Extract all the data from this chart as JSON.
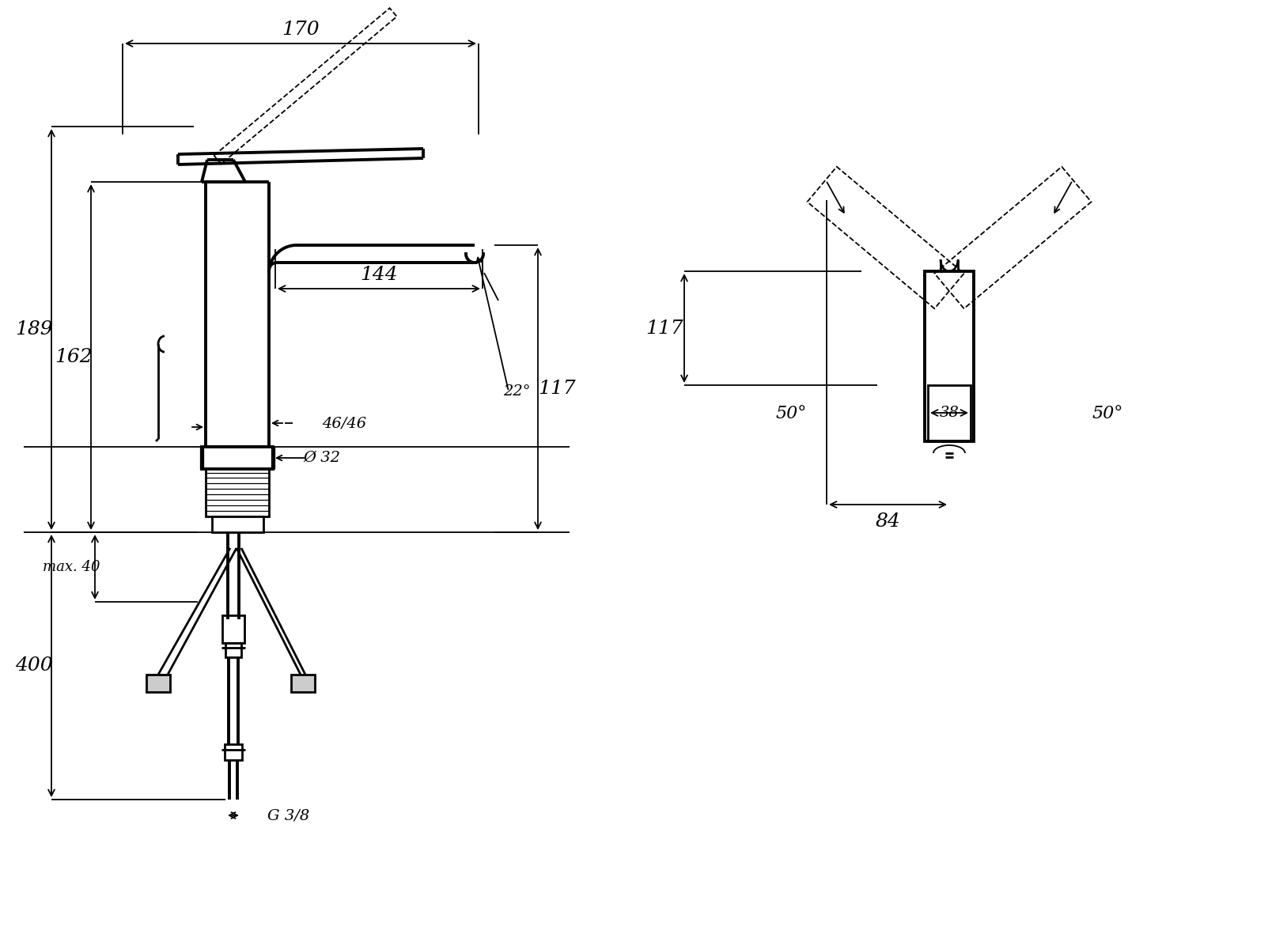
{
  "bg_color": "#ffffff",
  "line_color": "#000000",
  "lw": 2.0,
  "lw_thin": 1.3,
  "lw_thick": 2.8,
  "annotations": {
    "dim_170": "170",
    "dim_162": "162",
    "dim_189": "189",
    "dim_144": "144",
    "dim_22": "22°",
    "dim_117": "117",
    "dim_46": "46/46",
    "dim_32": "Ø 32",
    "dim_400": "400",
    "dim_40": "max. 40",
    "dim_g38": "G 3/8",
    "dim_38": "38",
    "dim_50L": "50°",
    "dim_50R": "50°",
    "dim_84": "84"
  }
}
